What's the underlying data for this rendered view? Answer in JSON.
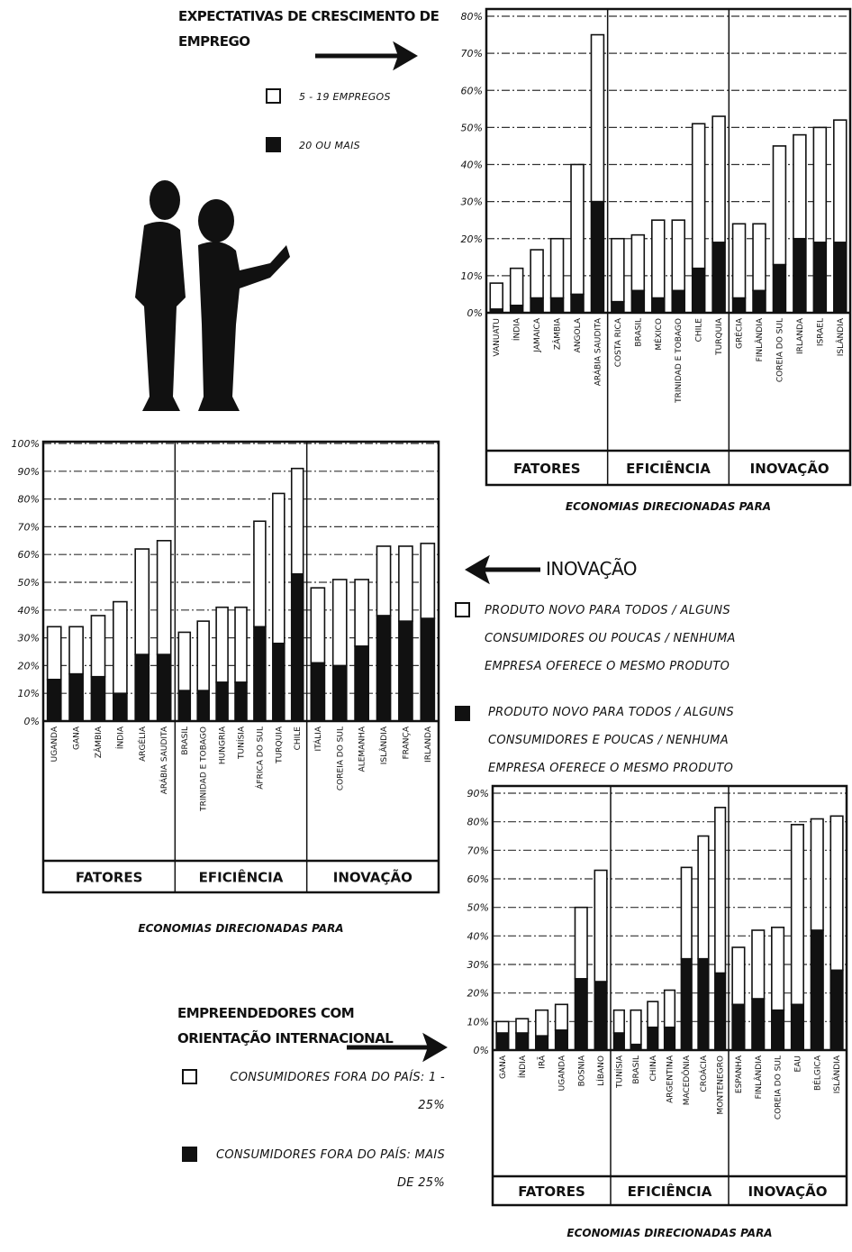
{
  "chart_data": [
    {
      "type": "bar",
      "stacked": true,
      "title": "EXPECTATIVAS DE CRESCIMENTO DE EMPREGO",
      "xlabel": "ECONOMIAS DIRECIONADAS PARA",
      "ylim": [
        0,
        80
      ],
      "yticks": [
        {
          "value": 0,
          "label": "0%"
        },
        {
          "value": 10,
          "label": "10%"
        },
        {
          "value": 20,
          "label": "20%"
        },
        {
          "value": 30,
          "label": "30%"
        },
        {
          "value": 40,
          "label": "40%"
        },
        {
          "value": 50,
          "label": "50%"
        },
        {
          "value": 60,
          "label": "60%"
        },
        {
          "value": 70,
          "label": "70%"
        },
        {
          "value": 80,
          "label": "80%"
        }
      ],
      "grid": true,
      "series": [
        {
          "name": "5 - 19 EMPREGOS",
          "color": "#ffffff"
        },
        {
          "name": "20 OU MAIS",
          "color": "#111111"
        }
      ],
      "groups": [
        {
          "name": "FATORES",
          "categories": [
            "VANUATU",
            "ÍNDIA",
            "JAMAICA",
            "ZÂMBIA",
            "ANGOLA",
            "ARÁBIA SAUDITA"
          ],
          "series": [
            {
              "values": [
                7,
                10,
                13,
                16,
                35,
                45
              ]
            },
            {
              "values": [
                1,
                2,
                4,
                4,
                5,
                30
              ]
            }
          ]
        },
        {
          "name": "EFICIÊNCIA",
          "categories": [
            "COSTA RICA",
            "BRASIL",
            "MÉXICO",
            "TRINIDAD E TOBAGO",
            "CHILE",
            "TURQUIA"
          ],
          "series": [
            {
              "values": [
                17,
                15,
                21,
                19,
                39,
                34
              ]
            },
            {
              "values": [
                3,
                6,
                4,
                6,
                12,
                19
              ]
            }
          ]
        },
        {
          "name": "INOVAÇÃO",
          "categories": [
            "GRÉCIA",
            "FINLÂNDIA",
            "COREIA DO SUL",
            "IRLANDA",
            "ISRAEL",
            "ISLÂNDIA"
          ],
          "series": [
            {
              "values": [
                20,
                18,
                32,
                28,
                31,
                33
              ]
            },
            {
              "values": [
                4,
                6,
                13,
                20,
                19,
                19
              ]
            }
          ]
        }
      ]
    },
    {
      "type": "bar",
      "stacked": true,
      "title": "INOVAÇÃO",
      "xlabel": "ECONOMIAS DIRECIONADAS PARA",
      "ylim": [
        0,
        100
      ],
      "yticks": [
        {
          "value": 0,
          "label": "0%"
        },
        {
          "value": 10,
          "label": "10%"
        },
        {
          "value": 20,
          "label": "20%"
        },
        {
          "value": 30,
          "label": "30%"
        },
        {
          "value": 40,
          "label": "40%"
        },
        {
          "value": 50,
          "label": "50%"
        },
        {
          "value": 60,
          "label": "60%"
        },
        {
          "value": 70,
          "label": "70%"
        },
        {
          "value": 80,
          "label": "80%"
        },
        {
          "value": 90,
          "label": "90%"
        },
        {
          "value": 100,
          "label": "100%"
        }
      ],
      "grid": true,
      "series": [
        {
          "name": "PRODUTO NOVO PARA TODOS / ALGUNS CONSUMIDORES OU POUCAS / NENHUMA EMPRESA OFERECE O MESMO PRODUTO",
          "color": "#ffffff"
        },
        {
          "name": "PRODUTO NOVO PARA TODOS / ALGUNS CONSUMIDORES E POUCAS / NENHUMA EMPRESA OFERECE O MESMO PRODUTO",
          "color": "#111111"
        }
      ],
      "groups": [
        {
          "name": "FATORES",
          "categories": [
            "UGANDA",
            "GANA",
            "ZÂMBIA",
            "ÍNDIA",
            "ARGÉLIA",
            "ARÁBIA SAUDITA"
          ],
          "series": [
            {
              "values": [
                19,
                17,
                22,
                33,
                38,
                41
              ]
            },
            {
              "values": [
                15,
                17,
                16,
                10,
                24,
                24
              ]
            }
          ]
        },
        {
          "name": "EFICIÊNCIA",
          "categories": [
            "BRASIL",
            "TRINIDAD E TOBAGO",
            "HUNGRIA",
            "TUNÍSIA",
            "ÁFRICA DO SUL",
            "TURQUIA",
            "CHILE"
          ],
          "series": [
            {
              "values": [
                21,
                25,
                27,
                27,
                38,
                54,
                38
              ]
            },
            {
              "values": [
                11,
                11,
                14,
                14,
                34,
                28,
                53
              ]
            }
          ]
        },
        {
          "name": "INOVAÇÃO",
          "categories": [
            "ITÁLIA",
            "COREIA DO SUL",
            "ALEMANHA",
            "ISLÂNDIA",
            "FRANÇA",
            "IRLANDA"
          ],
          "series": [
            {
              "values": [
                27,
                31,
                24,
                25,
                27,
                27
              ]
            },
            {
              "values": [
                21,
                20,
                27,
                38,
                36,
                37
              ]
            }
          ]
        }
      ]
    },
    {
      "type": "bar",
      "stacked": true,
      "title": "EMPREENDEDORES COM ORIENTAÇÃO INTERNACIONAL",
      "xlabel": "ECONOMIAS DIRECIONADAS PARA",
      "ylim": [
        0,
        90
      ],
      "yticks": [
        {
          "value": 0,
          "label": "0%"
        },
        {
          "value": 10,
          "label": "10%"
        },
        {
          "value": 20,
          "label": "20%"
        },
        {
          "value": 30,
          "label": "30%"
        },
        {
          "value": 40,
          "label": "40%"
        },
        {
          "value": 50,
          "label": "50%"
        },
        {
          "value": 60,
          "label": "60%"
        },
        {
          "value": 70,
          "label": "70%"
        },
        {
          "value": 80,
          "label": "80%"
        },
        {
          "value": 90,
          "label": "90%"
        }
      ],
      "grid": true,
      "series": [
        {
          "name": "CONSUMIDORES FORA DO PAÍS: 1 - 25%",
          "color": "#ffffff"
        },
        {
          "name": "CONSUMIDORES FORA DO PAÍS: MAIS DE 25%",
          "color": "#111111"
        }
      ],
      "groups": [
        {
          "name": "FATORES",
          "categories": [
            "GANA",
            "ÍNDIA",
            "IRÃ",
            "UGANDA",
            "BOSNIA",
            "LÍBANO"
          ],
          "series": [
            {
              "values": [
                4,
                5,
                9,
                9,
                25,
                39
              ]
            },
            {
              "values": [
                6,
                6,
                5,
                7,
                25,
                24
              ]
            }
          ]
        },
        {
          "name": "EFICIÊNCIA",
          "categories": [
            "TUNÍSIA",
            "BRASIL",
            "CHINA",
            "ARGENTINA",
            "MACEDÔNIA",
            "CROÁCIA",
            "MONTENEGRO"
          ],
          "series": [
            {
              "values": [
                8,
                12,
                9,
                13,
                32,
                43,
                58
              ]
            },
            {
              "values": [
                6,
                2,
                8,
                8,
                32,
                32,
                27
              ]
            }
          ]
        },
        {
          "name": "INOVAÇÃO",
          "categories": [
            "ESPANHA",
            "FINLÂNDIA",
            "COREIA DO SUL",
            "EAU",
            "BÉLGICA",
            "ISLÂNDIA"
          ],
          "series": [
            {
              "values": [
                20,
                24,
                29,
                63,
                39,
                54
              ]
            },
            {
              "values": [
                16,
                18,
                14,
                16,
                42,
                28
              ]
            }
          ]
        }
      ]
    }
  ]
}
